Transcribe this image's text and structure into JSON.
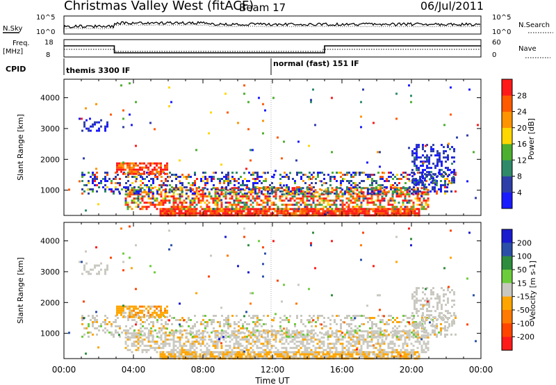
{
  "header": {
    "title": "Christmas Valley West (fitACF)",
    "beam": "Beam 17",
    "date": "06/Jul/2011"
  },
  "noise_panel": {
    "left_label": "N.Sky",
    "left_ticks": [
      "10^5",
      "10^0"
    ],
    "right_ticks": [
      "10^5",
      "10^0"
    ],
    "right_label": "N.Search"
  },
  "freq_panel": {
    "left_label_1": "Freq.",
    "left_label_2": "[MHz]",
    "left_ticks": [
      "18",
      "8"
    ],
    "right_ticks": [
      "60",
      "0"
    ],
    "right_label": "Nave"
  },
  "cpid": {
    "label": "CPID",
    "modes": [
      "themis 3300 IF",
      "normal (fast) 151 IF"
    ]
  },
  "colors": {
    "power": [
      "#1a1aff",
      "#2e3ea8",
      "#2f8a6a",
      "#4caf2f",
      "#ffd700",
      "#ff9400",
      "#ff5a00",
      "#ff1a1a"
    ],
    "velocity": [
      "#1a1acf",
      "#2b4fa8",
      "#2e8c3e",
      "#6ccc3b",
      "#c9c8c0",
      "#ffa500",
      "#ff7a00",
      "#ff4400",
      "#ff1a1a"
    ]
  },
  "chart_data": [
    {
      "type": "heatmap",
      "name": "power",
      "ylabel": "Slant Range [km]",
      "ylim": [
        180,
        4600
      ],
      "yticks": [
        "1000",
        "2000",
        "3000",
        "4000"
      ],
      "ytick_values": [
        1000,
        2000,
        3000,
        4000
      ],
      "xlim": [
        0,
        24
      ],
      "colorbar_label": "Power [dB]",
      "colorbar_ticks": [
        "4",
        "8",
        "12",
        "16",
        "20",
        "24",
        "28"
      ],
      "colorbar_range": [
        0,
        32
      ]
    },
    {
      "type": "heatmap",
      "name": "velocity",
      "ylabel": "Slant Range [km]",
      "ylim": [
        180,
        4600
      ],
      "yticks": [
        "1000",
        "2000",
        "3000",
        "4000"
      ],
      "ytick_values": [
        1000,
        2000,
        3000,
        4000
      ],
      "xlim": [
        0,
        24
      ],
      "xlabel": "Time UT",
      "xticks": [
        "00:00",
        "04:00",
        "08:00",
        "12:00",
        "16:00",
        "20:00",
        "00:00"
      ],
      "xtick_values": [
        0,
        4,
        8,
        12,
        16,
        20,
        24
      ],
      "colorbar_label": "Velocity [m s-1]",
      "colorbar_ticks": [
        "200",
        "100",
        "50",
        "15",
        "-15",
        "-50",
        "-100",
        "-200"
      ]
    },
    {
      "type": "line",
      "name": "frequency",
      "x": [
        0,
        2.9,
        2.9,
        15,
        15,
        24
      ],
      "y": [
        15,
        15,
        10,
        10,
        15,
        15
      ],
      "ylim": [
        8,
        18
      ]
    }
  ]
}
